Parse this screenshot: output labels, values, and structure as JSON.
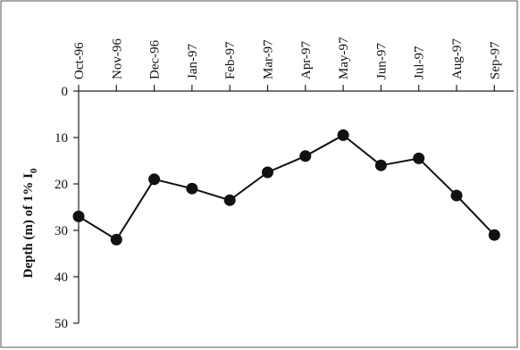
{
  "chart_data": {
    "type": "line",
    "categories": [
      "Oct-96",
      "Nov-96",
      "Dec-96",
      "Jan-97",
      "Feb-97",
      "Mar-97",
      "Apr-97",
      "May-97",
      "Jun-97",
      "Jul-97",
      "Aug-97",
      "Sep-97"
    ],
    "series": [
      {
        "values": [
          27,
          32,
          19,
          21,
          23.5,
          17.5,
          14,
          9.5,
          16,
          14.5,
          22.5,
          31
        ]
      }
    ],
    "ylabel": "Depth (m) of 1% I",
    "ylabel_subscript": "0",
    "yticks": [
      0,
      10,
      20,
      30,
      40,
      50
    ],
    "ylim": [
      0,
      50
    ],
    "y_inverted": true,
    "x_axis_position": "top",
    "grid": false,
    "legend": "none",
    "colors": {
      "line": "#111111",
      "marker": "#111111"
    }
  }
}
